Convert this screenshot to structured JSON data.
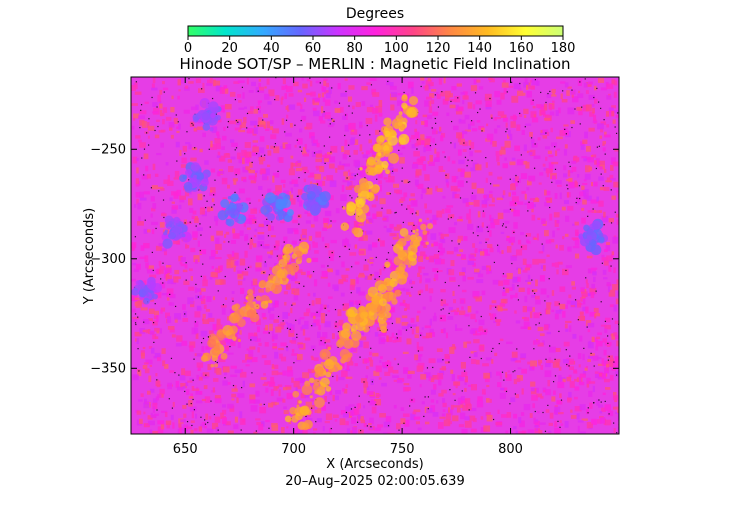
{
  "colorbar": {
    "label": "Degrees",
    "min": 0,
    "max": 180,
    "ticks": [
      0,
      20,
      40,
      60,
      80,
      100,
      120,
      140,
      160,
      180
    ],
    "colormap": [
      "#33ff66",
      "#00e5cc",
      "#33aaff",
      "#6666ff",
      "#cc33ff",
      "#ff22dd",
      "#ff4488",
      "#ff8844",
      "#ffbb22",
      "#ffff33",
      "#ccff77"
    ]
  },
  "chart_data": {
    "type": "heatmap",
    "title": "Hinode SOT/SP – MERLIN : Magnetic Field Inclination",
    "xlabel": "X (Arcseconds)",
    "ylabel": "Y (Arcseconds)",
    "xlim": [
      625,
      850
    ],
    "ylim": [
      -380,
      -217
    ],
    "xticks": [
      650,
      700,
      750,
      800
    ],
    "yticks": [
      -250,
      -300,
      -350
    ],
    "value_range": [
      0,
      180
    ],
    "background_value": 95,
    "features": [
      {
        "kind": "opposite polarity patch",
        "x": 655,
        "y": -263,
        "value": 60
      },
      {
        "kind": "opposite polarity patch",
        "x": 672,
        "y": -278,
        "value": 55
      },
      {
        "kind": "opposite polarity patch",
        "x": 693,
        "y": -277,
        "value": 52
      },
      {
        "kind": "opposite polarity patch",
        "x": 710,
        "y": -272,
        "value": 55
      },
      {
        "kind": "opposite polarity patch",
        "x": 632,
        "y": -315,
        "value": 65
      },
      {
        "kind": "opposite polarity patch",
        "x": 645,
        "y": -288,
        "value": 65
      },
      {
        "kind": "opposite polarity patch",
        "x": 838,
        "y": -290,
        "value": 60
      },
      {
        "kind": "opposite polarity patch",
        "x": 660,
        "y": -235,
        "value": 65
      },
      {
        "kind": "strong field lane",
        "x": [
          725,
          755
        ],
        "y": [
          -285,
          -225
        ],
        "value": 140
      },
      {
        "kind": "strong field lane",
        "x": [
          700,
          735
        ],
        "y": [
          -375,
          -320
        ],
        "value": 135
      },
      {
        "kind": "strong field lane",
        "x": [
          735,
          760
        ],
        "y": [
          -330,
          -285
        ],
        "value": 135
      },
      {
        "kind": "strong field lane",
        "x": [
          660,
          705
        ],
        "y": [
          -345,
          -295
        ],
        "value": 130
      }
    ]
  },
  "timestamp": "20–Aug–2025 02:00:05.639"
}
